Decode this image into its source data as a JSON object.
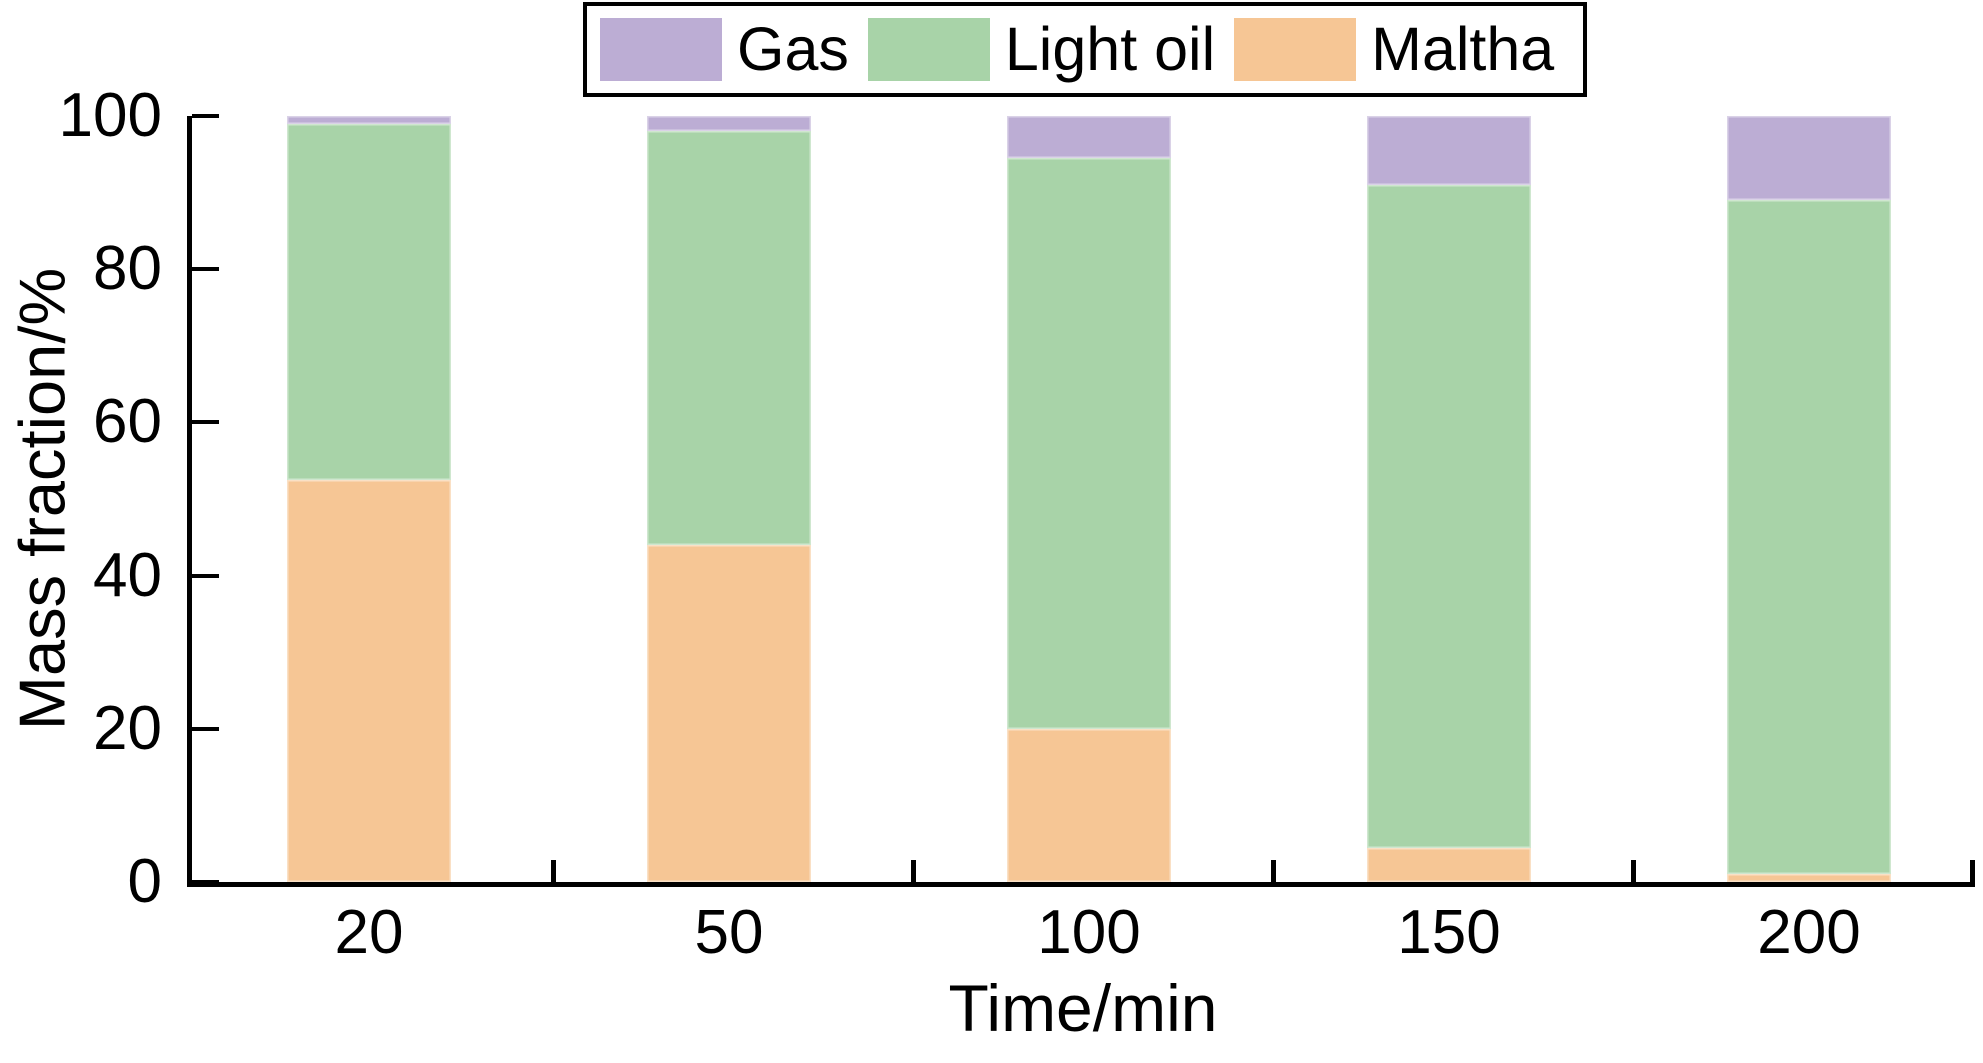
{
  "figure": {
    "title": "",
    "xlabel": "Time/min",
    "ylabel": "Mass fraction/%"
  },
  "legend": {
    "position": "top-center-boxed",
    "items": [
      {
        "label": "Gas",
        "color": "#bcadd4"
      },
      {
        "label": "Light oil",
        "color": "#a8d3a8"
      },
      {
        "label": "Maltha",
        "color": "#f6c695"
      }
    ]
  },
  "chart_data": {
    "type": "bar",
    "stacked": true,
    "orientation": "vertical",
    "title": "",
    "xlabel": "Time/min",
    "ylabel": "Mass fraction/%",
    "categories": [
      "20",
      "50",
      "100",
      "150",
      "200"
    ],
    "series": [
      {
        "name": "Maltha",
        "color": "#f6c695",
        "values": [
          52.5,
          44,
          20,
          4.5,
          1
        ]
      },
      {
        "name": "Light oil",
        "color": "#a8d3a8",
        "values": [
          46.5,
          54,
          74.5,
          86.5,
          88
        ]
      },
      {
        "name": "Gas",
        "color": "#bcadd4",
        "values": [
          1,
          2,
          5.5,
          9,
          11
        ]
      }
    ],
    "stack_order": "bottom-to-top",
    "ylim": [
      0,
      100
    ],
    "yticks": [
      0,
      20,
      40,
      60,
      80,
      100
    ],
    "grid": false,
    "tick_direction": "in",
    "x_boundary_ticks_between_categories": true,
    "legend_entries": [
      "Gas",
      "Light oil",
      "Maltha"
    ]
  }
}
